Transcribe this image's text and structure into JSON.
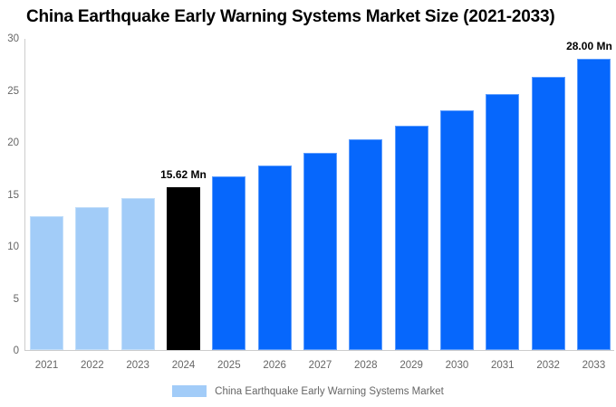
{
  "chart_data": {
    "type": "bar",
    "title": "China Earthquake Early Warning Systems Market Size (2021-2033)",
    "categories": [
      "2021",
      "2022",
      "2023",
      "2024",
      "2025",
      "2026",
      "2027",
      "2028",
      "2029",
      "2030",
      "2031",
      "2032",
      "2033"
    ],
    "values": [
      12.85,
      13.7,
      14.62,
      15.62,
      16.66,
      17.78,
      18.97,
      20.24,
      21.6,
      23.04,
      24.59,
      26.24,
      28.0
    ],
    "value_unit": "Mn",
    "xlabel": "",
    "ylabel": "",
    "ylim": [
      0,
      30
    ],
    "yticks": [
      0,
      5,
      10,
      15,
      20,
      25,
      30
    ],
    "grid": false,
    "legend_position": "bottom",
    "bar_roles": [
      "past",
      "past",
      "past",
      "current",
      "forecast",
      "forecast",
      "forecast",
      "forecast",
      "forecast",
      "forecast",
      "forecast",
      "forecast",
      "forecast"
    ],
    "bar_labels": {
      "2024": "15.62 Mn",
      "2033": "28.00 Mn"
    }
  },
  "legend": {
    "label": "China Earthquake Early Warning Systems Market"
  },
  "colors": {
    "past_bar": "#A2CCF8",
    "current_bar": "#000000",
    "forecast_bar": "#0667FC",
    "axis_line": "#CCCCCC",
    "tick_text": "#666666",
    "data_label_text": "#000000",
    "legend_text": "#666666",
    "title_text": "#000000",
    "background": "#FFFFFF"
  }
}
